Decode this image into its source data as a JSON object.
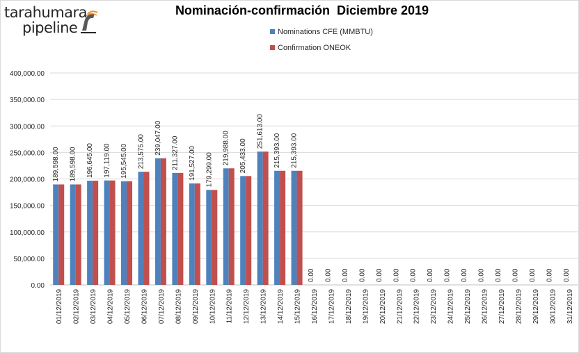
{
  "logo": {
    "line1": "tarahumara",
    "line2": "pipeline"
  },
  "colors": {
    "nominations": "#4f81bd",
    "confirmation": "#c0504d",
    "grid": "#d9d9d9",
    "axis": "#bfbfbf"
  },
  "chart_data": {
    "type": "bar",
    "title": "Nominación-confirmación  Diciembre 2019",
    "xlabel": "",
    "ylabel": "",
    "ylim": [
      0,
      400000
    ],
    "yticks": [
      0,
      50000,
      100000,
      150000,
      200000,
      250000,
      300000,
      350000,
      400000
    ],
    "ytick_labels": [
      "0.00",
      "50,000.00",
      "100,000.00",
      "150,000.00",
      "200,000.00",
      "250,000.00",
      "300,000.00",
      "350,000.00",
      "400,000.00"
    ],
    "grid": true,
    "legend_position": "top-center",
    "categories": [
      "01/12/2019",
      "02/12/2019",
      "03/12/2019",
      "04/12/2019",
      "05/12/2019",
      "06/12/2019",
      "07/12/2019",
      "08/12/2019",
      "09/12/2019",
      "10/12/2019",
      "11/12/2019",
      "12/12/2019",
      "13/12/2019",
      "14/12/2019",
      "15/12/2019",
      "16/12/2019",
      "17/12/2019",
      "18/12/2019",
      "19/12/2019",
      "20/12/2019",
      "21/12/2019",
      "22/12/2019",
      "23/12/2019",
      "24/12/2019",
      "25/12/2019",
      "26/12/2019",
      "27/12/2019",
      "28/12/2019",
      "29/12/2019",
      "30/12/2019",
      "31/12/2019"
    ],
    "series": [
      {
        "name": "Nominations CFE (MMBTU)",
        "values": [
          189598,
          189598,
          196645,
          197119,
          195545,
          213575,
          239047,
          211327,
          191527,
          179299,
          219988,
          205433,
          251613,
          215393,
          215393,
          0,
          0,
          0,
          0,
          0,
          0,
          0,
          0,
          0,
          0,
          0,
          0,
          0,
          0,
          0,
          0
        ]
      },
      {
        "name": "Confirmation ONEOK",
        "values": [
          189598,
          189598,
          196645,
          197119,
          195545,
          213575,
          239047,
          211327,
          191527,
          179299,
          219988,
          205433,
          251613,
          215393,
          215393,
          0,
          0,
          0,
          0,
          0,
          0,
          0,
          0,
          0,
          0,
          0,
          0,
          0,
          0,
          0,
          0
        ]
      }
    ],
    "data_labels": [
      "189,598.00",
      "189,598.00",
      "196,645.00",
      "197,119.00",
      "195,545.00",
      "213,575.00",
      "239,047.00",
      "211,327.00",
      "191,527.00",
      "179,299.00",
      "219,988.00",
      "205,433.00",
      "251,613.00",
      "215,393.00",
      "215,393.00",
      "0.00",
      "0.00",
      "0.00",
      "0.00",
      "0.00",
      "0.00",
      "0.00",
      "0.00",
      "0.00",
      "0.00",
      "0.00",
      "0.00",
      "0.00",
      "0.00",
      "0.00",
      "0.00"
    ]
  }
}
